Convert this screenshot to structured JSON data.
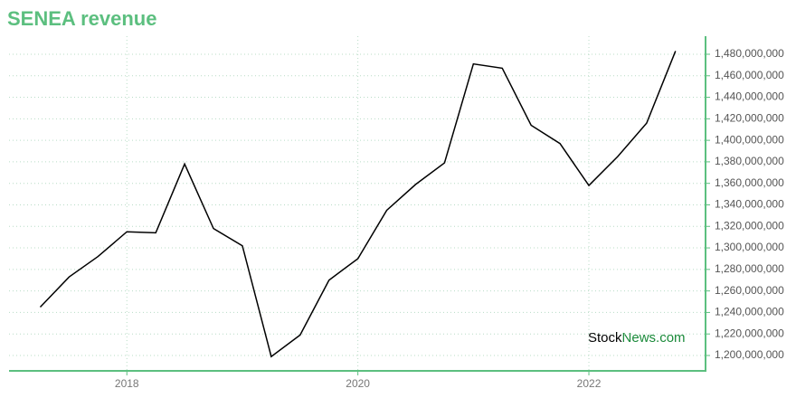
{
  "chart_data": {
    "type": "line",
    "title": "SENEA revenue",
    "x": [
      2017.25,
      2017.5,
      2017.75,
      2018,
      2018.25,
      2018.5,
      2018.75,
      2019,
      2019.25,
      2019.5,
      2019.75,
      2020,
      2020.25,
      2020.5,
      2020.75,
      2021,
      2021.25,
      2021.5,
      2021.75,
      2022,
      2022.25,
      2022.5,
      2022.75
    ],
    "series": [
      {
        "color": "#000000",
        "values": [
          1245000000,
          1273000000,
          1292000000,
          1315000000,
          1314000000,
          1378000000,
          1318000000,
          1302000000,
          1199000000,
          1219000000,
          1270000000,
          1290000000,
          1335000000,
          1359000000,
          1379000000,
          1471000000,
          1467000000,
          1414000000,
          1397000000,
          1358000000,
          1385000000,
          1416000000,
          1483000000
        ]
      }
    ],
    "xlim": [
      2016.98,
      2023.01
    ],
    "xticks": [
      2018,
      2020,
      2022
    ],
    "ylim": [
      1185700000,
      1496800000
    ],
    "yticks": [
      {
        "value": 1200000000,
        "label": "1,200,000,000"
      },
      {
        "value": 1220000000,
        "label": "1,220,000,000"
      },
      {
        "value": 1240000000,
        "label": "1,240,000,000"
      },
      {
        "value": 1260000000,
        "label": "1,260,000,000"
      },
      {
        "value": 1280000000,
        "label": "1,280,000,000"
      },
      {
        "value": 1300000000,
        "label": "1,300,000,000"
      },
      {
        "value": 1320000000,
        "label": "1,320,000,000"
      },
      {
        "value": 1340000000,
        "label": "1,340,000,000"
      },
      {
        "value": 1360000000,
        "label": "1,360,000,000"
      },
      {
        "value": 1380000000,
        "label": "1,380,000,000"
      },
      {
        "value": 1400000000,
        "label": "1,400,000,000"
      },
      {
        "value": 1420000000,
        "label": "1,420,000,000"
      },
      {
        "value": 1440000000,
        "label": "1,440,000,000"
      },
      {
        "value": 1460000000,
        "label": "1,460,000,000"
      },
      {
        "value": 1480000000,
        "label": "1,480,000,000"
      }
    ],
    "grid": true,
    "axis_color": "#5cbf7f",
    "watermark": {
      "first": "Stock",
      "second": "News.com"
    }
  }
}
